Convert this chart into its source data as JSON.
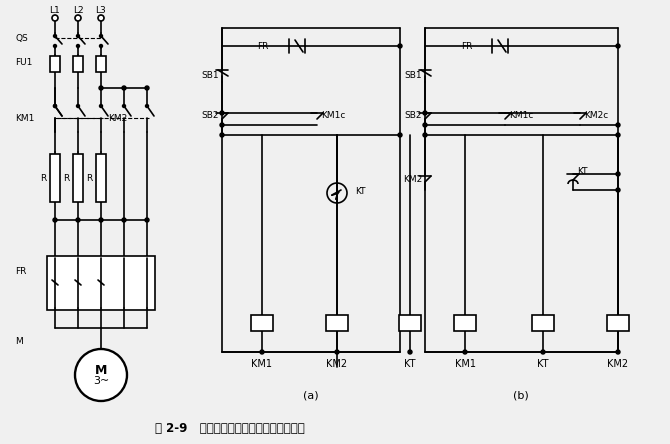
{
  "title": "图 2-9   定子电路串电阵降压启动控制线路",
  "bg_color": "#f0f0f0",
  "line_color": "#000000",
  "text_color": "#000000",
  "label_a": "(a)",
  "label_b": "(b)"
}
